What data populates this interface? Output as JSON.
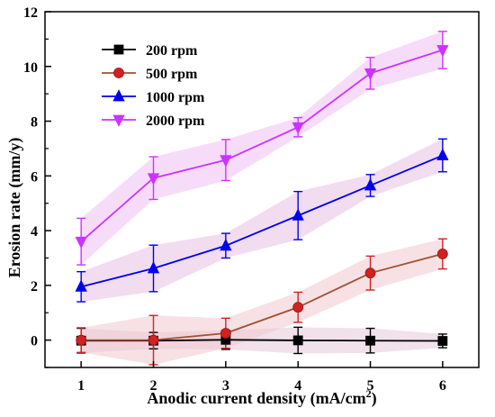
{
  "chart_data": {
    "type": "line",
    "title": "",
    "xlabel": "Anodic current density (mA/cm",
    "xlabel_sup": "2",
    "xlabel_end": ")",
    "ylabel": "Erosion rate (mm/y)",
    "xlim": [
      0.5,
      6.5
    ],
    "ylim": [
      -1,
      12
    ],
    "xticks": [
      1,
      2,
      3,
      4,
      5,
      6
    ],
    "yticks": [
      0,
      2,
      4,
      6,
      8,
      10,
      12
    ],
    "x": [
      1,
      2,
      3,
      4,
      5,
      6
    ],
    "grid": false,
    "legend_position": "top-left",
    "series": [
      {
        "name": "200 rpm",
        "color": "#000000",
        "band_color": "#e6c8d8",
        "marker": "square",
        "values": [
          -0.02,
          -0.02,
          0.01,
          -0.01,
          -0.02,
          -0.03
        ],
        "errors": [
          0.45,
          0.3,
          0.35,
          0.48,
          0.45,
          0.25
        ]
      },
      {
        "name": "500 rpm",
        "color": "#a0522d",
        "marker_color": "#d42020",
        "band_color": "#f0c8d0",
        "marker": "circle",
        "values": [
          0.0,
          0.0,
          0.25,
          1.2,
          2.45,
          3.15
        ],
        "errors": [
          0.45,
          0.9,
          0.55,
          0.55,
          0.62,
          0.55
        ]
      },
      {
        "name": "1000 rpm",
        "color": "#0000ee",
        "band_color": "#e8c0e4",
        "marker": "triangle-up",
        "values": [
          1.95,
          2.62,
          3.45,
          4.55,
          5.65,
          6.75
        ],
        "errors": [
          0.55,
          0.85,
          0.45,
          0.88,
          0.4,
          0.6
        ]
      },
      {
        "name": "2000 rpm",
        "color": "#cc33ff",
        "band_color": "#f0c0f4",
        "marker": "triangle-down",
        "values": [
          3.6,
          5.92,
          6.58,
          7.78,
          9.75,
          10.6
        ],
        "errors": [
          0.85,
          0.78,
          0.75,
          0.35,
          0.58,
          0.68
        ]
      }
    ]
  }
}
